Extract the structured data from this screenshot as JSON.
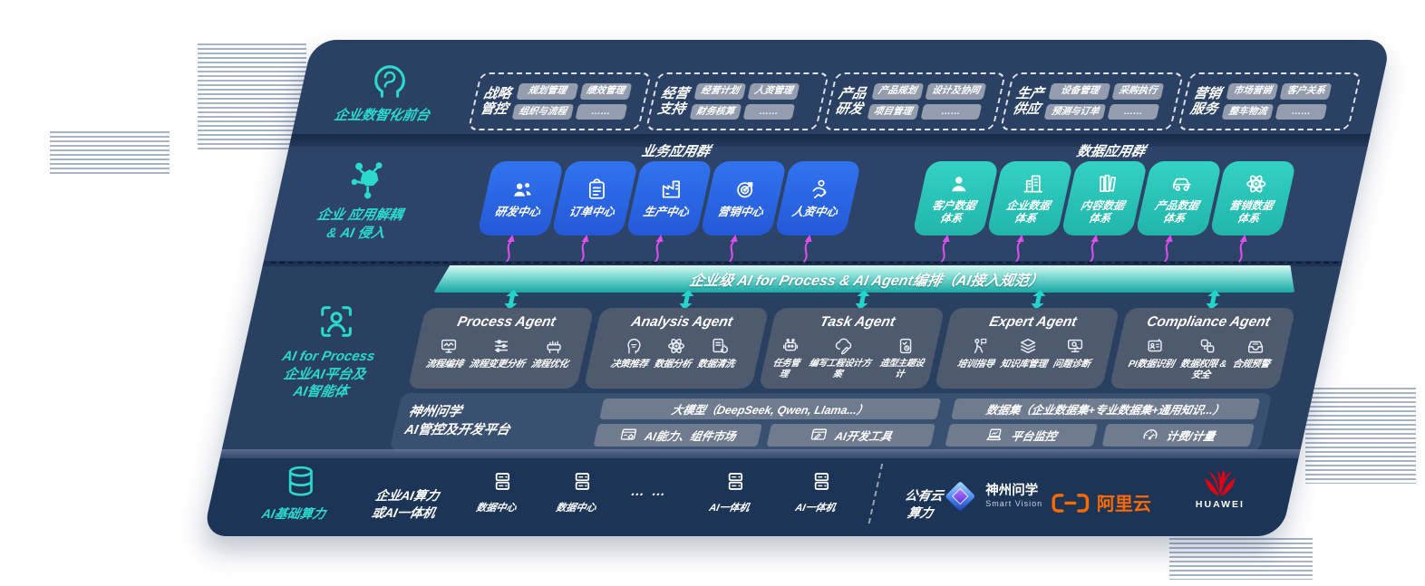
{
  "colors": {
    "panel_navy": "#2b4164",
    "accent_teal": "#2bd9cd",
    "blue_box": "#2e6ce6",
    "teal_box": "#2ecabd",
    "magenta": "#e14ef0",
    "banner_teal": "#17a8a4",
    "aliyun_orange": "#ff6a00",
    "huawei_red": "#e60012"
  },
  "layer_front": {
    "label": "企业数智化前台",
    "icon": "head-brain-icon",
    "groups": [
      {
        "name1": "战略",
        "name2": "管控",
        "tags": [
          "规划管理",
          "绩效管理",
          "组织与流程",
          "……"
        ]
      },
      {
        "name1": "经营",
        "name2": "支持",
        "tags": [
          "经营计划",
          "人资管理",
          "财务核算",
          "……"
        ]
      },
      {
        "name1": "产品",
        "name2": "研发",
        "tags": [
          "产品规划",
          "设计及协同",
          "项目管理",
          "……"
        ]
      },
      {
        "name1": "生产",
        "name2": "供应",
        "tags": [
          "设备管理",
          "采购执行",
          "预测与订单",
          "……"
        ]
      },
      {
        "name1": "营销",
        "name2": "服务",
        "tags": [
          "市场营销",
          "客户关系",
          "整车物流",
          "……"
        ]
      }
    ]
  },
  "layer_apps": {
    "label_line1": "企业 应用解耦",
    "label_line2": "& AI 侵入",
    "icon": "molecule-icon",
    "business": {
      "title": "业务应用群",
      "items": [
        {
          "label": "研发中心",
          "icon": "team-icon"
        },
        {
          "label": "订单中心",
          "icon": "clipboard-icon"
        },
        {
          "label": "生产中心",
          "icon": "factory-icon"
        },
        {
          "label": "营销中心",
          "icon": "target-icon"
        },
        {
          "label": "人资中心",
          "icon": "hr-icon"
        }
      ]
    },
    "data": {
      "title": "数据应用群",
      "items": [
        {
          "label": "客户数据\n体系",
          "icon": "user-icon"
        },
        {
          "label": "企业数据\n体系",
          "icon": "building-icon"
        },
        {
          "label": "内容数据\n体系",
          "icon": "books-icon"
        },
        {
          "label": "产品数据\n体系",
          "icon": "car-icon"
        },
        {
          "label": "营销数据\n体系",
          "icon": "atom-icon"
        }
      ]
    }
  },
  "banner": {
    "text": "企业级 AI for Process & AI Agent编排（AI接入规范）"
  },
  "layer_ai": {
    "label_line1": "AI for Process",
    "label_line2": "企业AI平台及",
    "label_line3": "AI智能体",
    "icon": "scan-person-icon",
    "agents": [
      {
        "title": "Process Agent",
        "items": [
          {
            "label": "流程编排",
            "icon": "monitor-wave-icon"
          },
          {
            "label": "流程变更分析",
            "icon": "sliders-icon"
          },
          {
            "label": "流程优化",
            "icon": "machine-icon"
          }
        ]
      },
      {
        "title": "Analysis Agent",
        "items": [
          {
            "label": "决策推荐",
            "icon": "head-idea-icon"
          },
          {
            "label": "数据分析",
            "icon": "atom-icon"
          },
          {
            "label": "数据清洗",
            "icon": "doc-refresh-icon"
          }
        ]
      },
      {
        "title": "Task Agent",
        "items": [
          {
            "label": "任务管理",
            "icon": "robot-icon"
          },
          {
            "label": "编写工程设计方案",
            "icon": "cloud-pen-icon"
          },
          {
            "label": "造型主题设计",
            "icon": "card-check-icon"
          }
        ]
      },
      {
        "title": "Expert Agent",
        "items": [
          {
            "label": "培训指导",
            "icon": "training-icon"
          },
          {
            "label": "知识库管理",
            "icon": "layers-icon"
          },
          {
            "label": "问题诊断",
            "icon": "diagnose-icon"
          }
        ]
      },
      {
        "title": "Compliance Agent",
        "items": [
          {
            "label": "PI数据识别",
            "icon": "id-card-icon"
          },
          {
            "label": "数据权限 &\n安全",
            "icon": "lock-link-icon"
          },
          {
            "label": "合规预警",
            "icon": "inbox-alert-icon"
          }
        ]
      }
    ]
  },
  "platform": {
    "label_line1": "神州问学",
    "label_line2": "AI管控及开发平台",
    "model_bar": "大模型（DeepSeek, Qwen, Llama...）",
    "dataset_bar": "数据集（企业数据集+专业数据集+通用知识...）",
    "tools": [
      {
        "label": "AI能力、组件市场",
        "icon": "window-gear-icon"
      },
      {
        "label": "AI开发工具",
        "icon": "window-pen-icon"
      },
      {
        "label": "平台监控",
        "icon": "laptop-chart-icon"
      },
      {
        "label": "计费/计量",
        "icon": "gauge-icon"
      }
    ]
  },
  "layer_infra": {
    "label": "AI基础算力",
    "icon": "database-icon",
    "compute_label": "企业AI算力\n或AI一体机",
    "nodes": [
      {
        "label": "数据中心",
        "icon": "server-icon"
      },
      {
        "label": "数据中心",
        "icon": "server-icon"
      },
      {
        "label": "AI一体机",
        "icon": "server-icon"
      },
      {
        "label": "AI一体机",
        "icon": "server-icon"
      }
    ],
    "ellipsis": "…  …",
    "public_cloud": "公有云\n算力",
    "vendors": [
      {
        "name": "神州问学",
        "sub": "Smart Vision",
        "icon": "diamond-logo"
      },
      {
        "name": "阿里云",
        "icon": "aliyun-logo"
      },
      {
        "name": "HUAWEI",
        "icon": "huawei-logo"
      }
    ]
  }
}
